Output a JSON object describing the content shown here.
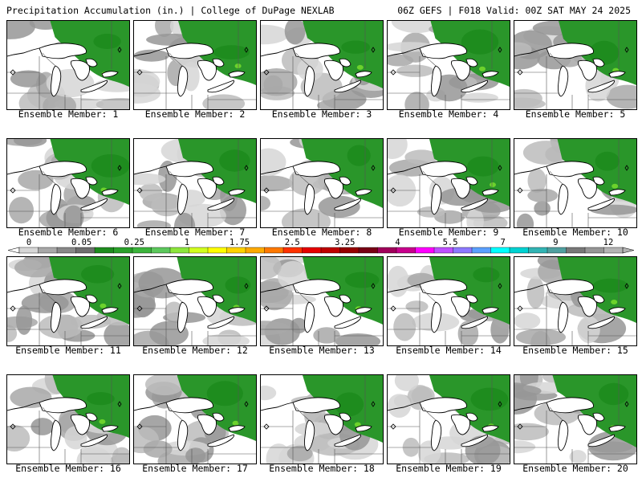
{
  "header": {
    "left": "Precipitation Accumulation (in.) | College of DuPage NEXLAB",
    "right": "06Z GEFS | F018 Valid: 00Z SAT MAY 24 2025"
  },
  "member_label_prefix": "Ensemble Member: ",
  "members": [
    {
      "label": "Ensemble Member: 1",
      "coverage": 0.55
    },
    {
      "label": "Ensemble Member: 2",
      "coverage": 0.5
    },
    {
      "label": "Ensemble Member: 3",
      "coverage": 0.6
    },
    {
      "label": "Ensemble Member: 4",
      "coverage": 0.55
    },
    {
      "label": "Ensemble Member: 5",
      "coverage": 0.5
    },
    {
      "label": "Ensemble Member: 6",
      "coverage": 0.55
    },
    {
      "label": "Ensemble Member: 7",
      "coverage": 0.5
    },
    {
      "label": "Ensemble Member: 8",
      "coverage": 0.65
    },
    {
      "label": "Ensemble Member: 9",
      "coverage": 0.6
    },
    {
      "label": "Ensemble Member: 10",
      "coverage": 0.55
    },
    {
      "label": "Ensemble Member: 11",
      "coverage": 0.6
    },
    {
      "label": "Ensemble Member: 12",
      "coverage": 0.55
    },
    {
      "label": "Ensemble Member: 13",
      "coverage": 0.6
    },
    {
      "label": "Ensemble Member: 14",
      "coverage": 0.6
    },
    {
      "label": "Ensemble Member: 15",
      "coverage": 0.55
    },
    {
      "label": "Ensemble Member: 16",
      "coverage": 0.45
    },
    {
      "label": "Ensemble Member: 17",
      "coverage": 0.55
    },
    {
      "label": "Ensemble Member: 18",
      "coverage": 0.6
    },
    {
      "label": "Ensemble Member: 19",
      "coverage": 0.6
    },
    {
      "label": "Ensemble Member: 20",
      "coverage": 0.75
    }
  ],
  "colorbar": {
    "tick_labels": [
      "0",
      "0.05",
      "0.25",
      "1",
      "1.75",
      "2.5",
      "3.25",
      "4",
      "5.5",
      "7",
      "9",
      "12"
    ],
    "colors": [
      "#d6d6d6",
      "#a8a8a8",
      "#888888",
      "#6e6e6e",
      "#1e8c1e",
      "#2aa02a",
      "#3cb43c",
      "#5cc85c",
      "#8ce63c",
      "#d2ff1e",
      "#ffff00",
      "#ffd200",
      "#ffaa00",
      "#ff7800",
      "#ff3200",
      "#e60000",
      "#be0000",
      "#960000",
      "#780014",
      "#a0005a",
      "#c8008c",
      "#ff00ff",
      "#be50ff",
      "#8c78ff",
      "#5aa0ff",
      "#00ffff",
      "#00d2d2",
      "#32b4b4",
      "#50a0a0",
      "#787878",
      "#969696",
      "#b4b4b4"
    ]
  }
}
